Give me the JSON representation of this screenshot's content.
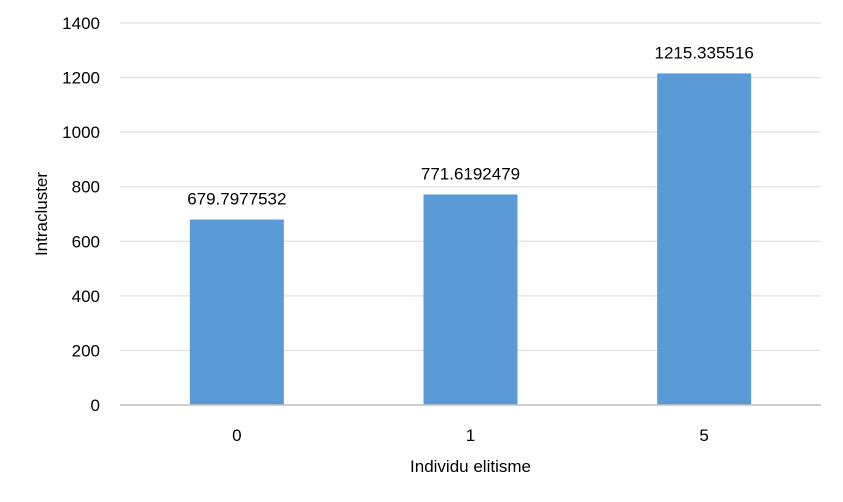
{
  "chart_data": {
    "type": "bar",
    "title": "",
    "xlabel": "Individu elitisme",
    "ylabel": "Intracluster",
    "categories": [
      "0",
      "1",
      "5"
    ],
    "values": [
      679.7977532,
      771.6192479,
      1215.335516
    ],
    "data_labels": [
      "679.7977532",
      "771.6192479",
      "1215.335516"
    ],
    "ylim": [
      0,
      1400
    ],
    "yticks": [
      0,
      200,
      400,
      600,
      800,
      1000,
      1200,
      1400
    ],
    "grid": true,
    "legend": "none",
    "colors": {
      "bar": "#5B9BD5",
      "grid": "#D9D9D9",
      "axis": "#BFBFBF",
      "text": "#000000"
    }
  }
}
